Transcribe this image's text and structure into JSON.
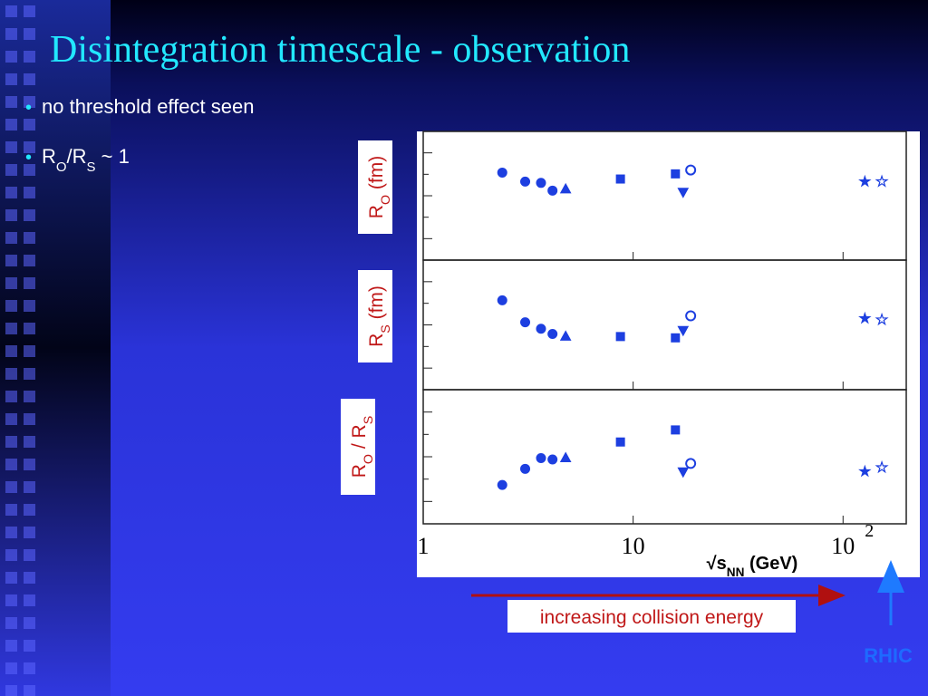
{
  "title": "Disintegration timescale - observation",
  "bullets": [
    [
      {
        "text": "no threshold effect seen"
      }
    ],
    [
      {
        "text": "R"
      },
      {
        "sub": "O"
      },
      {
        "text": "/R"
      },
      {
        "sub": "S"
      },
      {
        "text": " ~ 1"
      }
    ]
  ],
  "annotation": "increasing collision energy",
  "rhic_label": "RHIC",
  "chart_data": {
    "type": "scatter",
    "log_x": true,
    "color": "#1d3fe0",
    "xlim": [
      1,
      200
    ],
    "xticks": [
      1,
      10,
      {
        "value": 100,
        "label": "10",
        "sup": "2"
      }
    ],
    "xlabel": [
      {
        "text": "√s"
      },
      {
        "sub": "NN"
      },
      {
        "text": " (GeV)"
      }
    ],
    "x": [
      2.38,
      3.06,
      3.64,
      4.13,
      4.77,
      8.7,
      15.9,
      17.3,
      18.8,
      127,
      153
    ],
    "markers": [
      "circle",
      "circle",
      "circle",
      "circle",
      "triangle",
      "square",
      "square",
      "triangle-down",
      "open-circle",
      "star",
      "open-star"
    ],
    "panels": [
      {
        "ylabel": [
          {
            "text": "R"
          },
          {
            "sub": "O"
          },
          {
            "text": " (fm)"
          }
        ],
        "ylim": [
          0,
          1
        ],
        "values": [
          0.68,
          0.61,
          0.6,
          0.54,
          0.55,
          0.63,
          0.67,
          0.53,
          0.7,
          0.61,
          0.61
        ]
      },
      {
        "ylabel": [
          {
            "text": "R"
          },
          {
            "sub": "S"
          },
          {
            "text": " (fm)"
          }
        ],
        "ylim": [
          0,
          1
        ],
        "values": [
          0.69,
          0.52,
          0.47,
          0.43,
          0.41,
          0.41,
          0.4,
          0.46,
          0.57,
          0.55,
          0.54
        ]
      },
      {
        "ylabel": [
          {
            "text": "R"
          },
          {
            "sub": "O"
          },
          {
            "text": " / R"
          },
          {
            "sub": "S"
          }
        ],
        "ylim": [
          0,
          1
        ],
        "values": [
          0.29,
          0.41,
          0.49,
          0.48,
          0.49,
          0.61,
          0.7,
          0.39,
          0.45,
          0.39,
          0.42
        ]
      }
    ]
  }
}
